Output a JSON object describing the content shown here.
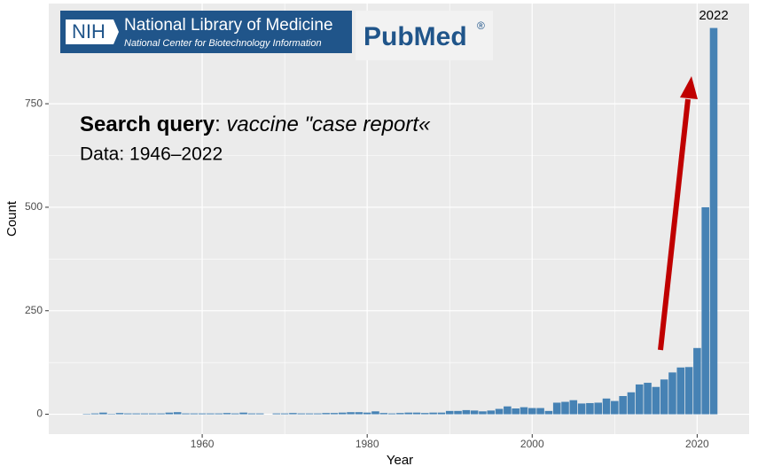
{
  "chart_data": {
    "type": "bar",
    "x": [
      1946,
      1947,
      1948,
      1949,
      1950,
      1951,
      1952,
      1953,
      1954,
      1955,
      1956,
      1957,
      1958,
      1959,
      1960,
      1961,
      1962,
      1963,
      1964,
      1965,
      1966,
      1967,
      1968,
      1969,
      1970,
      1971,
      1972,
      1973,
      1974,
      1975,
      1976,
      1977,
      1978,
      1979,
      1980,
      1981,
      1982,
      1983,
      1984,
      1985,
      1986,
      1987,
      1988,
      1989,
      1990,
      1991,
      1992,
      1993,
      1994,
      1995,
      1996,
      1997,
      1998,
      1999,
      2000,
      2001,
      2002,
      2003,
      2004,
      2005,
      2006,
      2007,
      2008,
      2009,
      2010,
      2011,
      2012,
      2013,
      2014,
      2015,
      2016,
      2017,
      2018,
      2019,
      2020,
      2021,
      2022
    ],
    "values": [
      1,
      2,
      4,
      1,
      3,
      2,
      2,
      2,
      2,
      2,
      4,
      5,
      2,
      2,
      2,
      2,
      2,
      3,
      2,
      4,
      2,
      2,
      0,
      2,
      2,
      3,
      2,
      2,
      2,
      3,
      3,
      4,
      5,
      5,
      4,
      7,
      3,
      2,
      3,
      4,
      4,
      3,
      4,
      4,
      8,
      8,
      10,
      9,
      7,
      9,
      13,
      19,
      14,
      17,
      15,
      15,
      8,
      28,
      30,
      34,
      26,
      27,
      28,
      38,
      32,
      44,
      53,
      72,
      76,
      66,
      84,
      101,
      113,
      114,
      160,
      500,
      933
    ],
    "color": "#4682b4",
    "xlabel": "Year",
    "ylabel": "Count",
    "xlim": [
      1941.4,
      2026.3
    ],
    "xticks": [
      1960,
      1980,
      2000,
      2020
    ],
    "ylim": [
      -48,
      992
    ],
    "yticks": [
      0,
      250,
      500,
      750
    ],
    "grid": true,
    "annotations": {
      "peak": "2022",
      "query_label": "Search query",
      "query_sep": ":",
      "query": "vaccine \"case report«",
      "data_range": "Data: 1946–2022"
    }
  },
  "logos": {
    "nih": "NIH",
    "nlm": "National Library of Medicine",
    "ncbi": "National Center for Biotechnology Information",
    "pubmed": "PubMed",
    "registered": "®"
  }
}
